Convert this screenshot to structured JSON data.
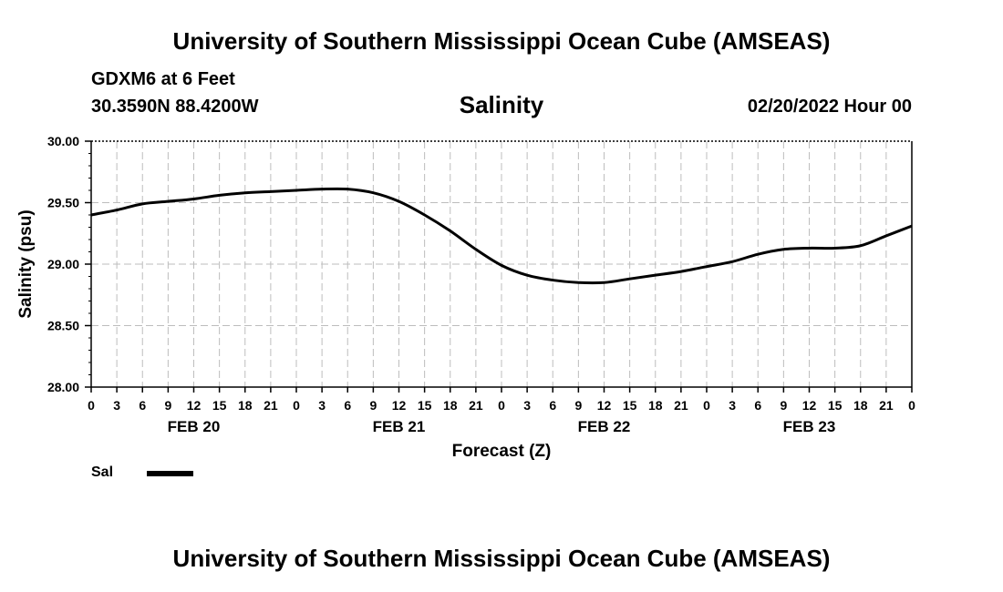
{
  "header": {
    "title": "University of Southern Mississippi Ocean Cube (AMSEAS)",
    "station": "GDXM6 at 6 Feet",
    "coordinates": "30.3590N  88.4200W",
    "chart_title": "Salinity",
    "date": "02/20/2022 Hour 00"
  },
  "footer": {
    "title": "University of Southern Mississippi Ocean Cube (AMSEAS)"
  },
  "legend": {
    "label": "Sal",
    "color": "#000000"
  },
  "chart_data": {
    "type": "line",
    "title": "Salinity",
    "xlabel": "Forecast (Z)",
    "ylabel": "Salinity (psu)",
    "ylim": [
      28.0,
      30.0
    ],
    "xlim": [
      0,
      96
    ],
    "y_ticks": [
      "28.00",
      "28.50",
      "29.00",
      "29.50",
      "30.00"
    ],
    "y_tick_values": [
      28.0,
      28.5,
      29.0,
      29.5,
      30.0
    ],
    "x_tick_labels": [
      "0",
      "3",
      "6",
      "9",
      "12",
      "15",
      "18",
      "21",
      "0",
      "3",
      "6",
      "9",
      "12",
      "15",
      "18",
      "21",
      "0",
      "3",
      "6",
      "9",
      "12",
      "15",
      "18",
      "21",
      "0",
      "3",
      "6",
      "9",
      "12",
      "15",
      "18",
      "21",
      "0"
    ],
    "day_labels": [
      {
        "label": "FEB 20",
        "hour": 12
      },
      {
        "label": "FEB 21",
        "hour": 36
      },
      {
        "label": "FEB 22",
        "hour": 60
      },
      {
        "label": "FEB 23",
        "hour": 84
      }
    ],
    "grid": true,
    "series": [
      {
        "name": "Sal",
        "x": [
          0,
          3,
          6,
          9,
          12,
          15,
          18,
          21,
          24,
          27,
          30,
          33,
          36,
          39,
          42,
          45,
          48,
          51,
          54,
          57,
          60,
          63,
          66,
          69,
          72,
          75,
          78,
          81,
          84,
          87,
          90,
          93,
          96
        ],
        "y": [
          29.4,
          29.44,
          29.49,
          29.51,
          29.53,
          29.56,
          29.58,
          29.59,
          29.6,
          29.61,
          29.61,
          29.58,
          29.51,
          29.4,
          29.27,
          29.12,
          28.99,
          28.91,
          28.87,
          28.85,
          28.85,
          28.88,
          28.91,
          28.94,
          28.98,
          29.02,
          29.08,
          29.12,
          29.13,
          29.13,
          29.15,
          29.23,
          29.31
        ]
      }
    ]
  }
}
